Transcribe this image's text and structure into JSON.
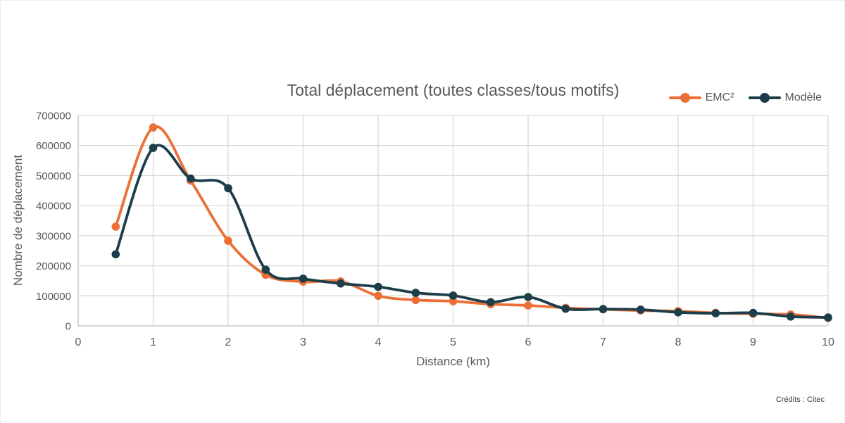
{
  "page": {
    "background": "#ffffff",
    "credits": "Crédits : Citec"
  },
  "chart_data": {
    "type": "line",
    "title": "Total déplacement (toutes classes/tous motifs)",
    "xlabel": "Distance (km)",
    "ylabel": "Nombre de déplacement",
    "x": [
      0.5,
      1,
      1.5,
      2,
      2.5,
      3,
      3.5,
      4,
      4.5,
      5,
      5.5,
      6,
      6.5,
      7,
      7.5,
      8,
      8.5,
      9,
      9.5,
      10
    ],
    "series": [
      {
        "name": "EMC²",
        "color": "#EC7036",
        "values": [
          330000,
          660000,
          483000,
          283000,
          170000,
          147000,
          148000,
          100000,
          86000,
          82000,
          72000,
          68000,
          60000,
          55000,
          51000,
          49000,
          43000,
          40000,
          38000,
          26000
        ]
      },
      {
        "name": "Modèle",
        "color": "#1B3E4A",
        "values": [
          238000,
          592000,
          490000,
          458000,
          187000,
          157000,
          141000,
          130000,
          110000,
          101000,
          79000,
          96000,
          57000,
          56000,
          54000,
          45000,
          42000,
          43000,
          31000,
          28000
        ]
      }
    ],
    "xlim": [
      0,
      10
    ],
    "ylim": [
      0,
      700000
    ],
    "x_ticks": [
      0,
      1,
      2,
      3,
      4,
      5,
      6,
      7,
      8,
      9,
      10
    ],
    "y_ticks": [
      0,
      100000,
      200000,
      300000,
      400000,
      500000,
      600000,
      700000
    ],
    "grid": true,
    "smooth": true,
    "legend_position": "top-right",
    "colors": {
      "text": "#595959",
      "grid": "#D9D9D9",
      "axis": "#BFBFBF"
    }
  }
}
